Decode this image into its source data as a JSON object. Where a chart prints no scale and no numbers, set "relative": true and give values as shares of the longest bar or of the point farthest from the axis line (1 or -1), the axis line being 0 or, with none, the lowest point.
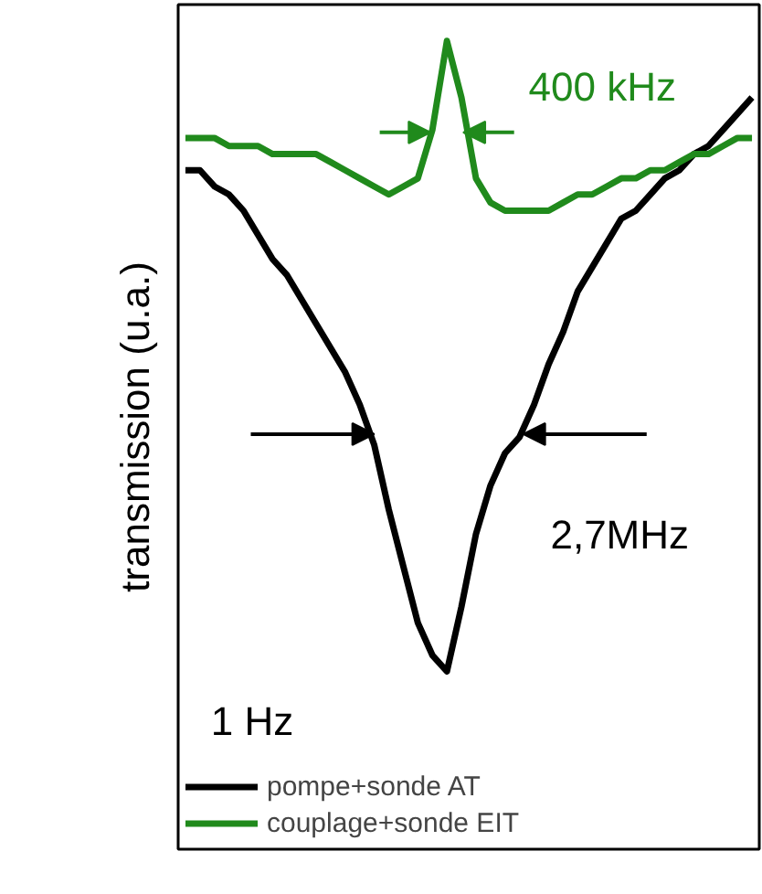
{
  "chart_data": {
    "type": "line",
    "relative": true,
    "ylabel": "transmission (u.a.)",
    "categories": [
      null,
      null,
      null,
      null,
      null,
      null,
      null,
      null,
      null,
      null,
      null,
      null,
      null,
      null,
      null,
      null,
      null,
      null,
      null,
      null,
      null,
      null,
      null,
      null,
      null,
      null,
      null,
      null,
      null,
      null,
      null,
      null,
      null,
      null,
      null,
      null,
      null,
      null,
      null,
      null
    ],
    "series": [
      {
        "name": "pompe+sonde AT",
        "color": "#000000",
        "values": [
          0.84,
          0.84,
          0.82,
          0.81,
          0.79,
          0.76,
          0.73,
          0.71,
          0.68,
          0.65,
          0.62,
          0.59,
          0.55,
          0.5,
          0.42,
          0.35,
          0.28,
          0.24,
          0.22,
          0.3,
          0.39,
          0.45,
          0.49,
          0.51,
          0.55,
          0.6,
          0.64,
          0.69,
          0.72,
          0.75,
          0.78,
          0.79,
          0.81,
          0.83,
          0.84,
          0.86,
          0.87,
          0.89,
          0.91,
          0.93
        ]
      },
      {
        "name": "couplage+sonde EIT",
        "color": "#208a1c",
        "values": [
          0.88,
          0.88,
          0.88,
          0.87,
          0.87,
          0.87,
          0.86,
          0.86,
          0.86,
          0.86,
          0.85,
          0.84,
          0.83,
          0.82,
          0.81,
          0.82,
          0.83,
          0.89,
          1.0,
          0.93,
          0.83,
          0.8,
          0.79,
          0.79,
          0.79,
          0.79,
          0.8,
          0.81,
          0.81,
          0.82,
          0.83,
          0.83,
          0.84,
          0.84,
          0.85,
          0.86,
          0.86,
          0.87,
          0.88,
          0.88
        ]
      }
    ],
    "annotations": [
      "400 kHz",
      "2,7MHz",
      "1 Hz"
    ],
    "legend": "bottom left",
    "grid": false,
    "line_style": "solid",
    "marker": "none"
  }
}
